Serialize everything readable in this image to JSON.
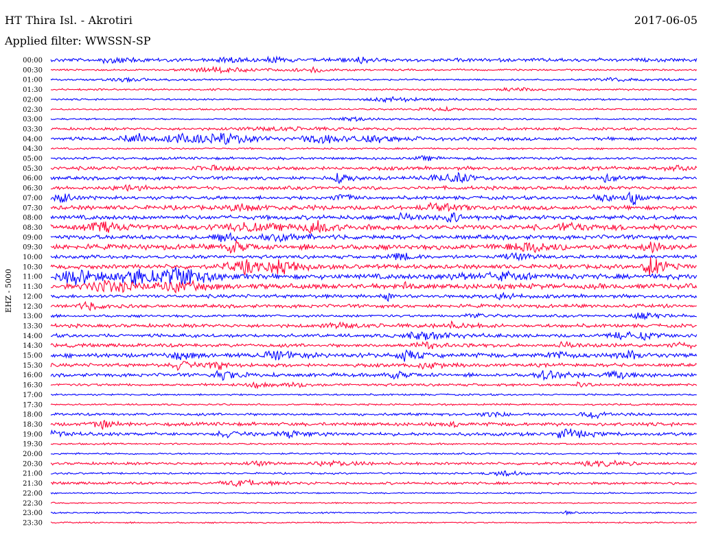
{
  "header": {
    "station": "HT Thira Isl. - Akrotiri",
    "date": "2017-06-05",
    "filter_label": "Applied filter:",
    "filter_value": "WWSSN-SP"
  },
  "chart_data": {
    "type": "line",
    "title": "HT Thira Isl. - Akrotiri",
    "subtitle": "Applied filter: WWSSN-SP",
    "ylabel": "EHZ - 5000",
    "trace_colors": [
      "#0000ff",
      "#ff0033"
    ],
    "rows": [
      {
        "label": "00:00",
        "color": "#0000ff",
        "amp": 2,
        "bursts": [
          [
            0.1,
            0.03,
            4
          ],
          [
            0.28,
            0.03,
            3
          ],
          [
            0.35,
            0.02,
            3
          ],
          [
            0.47,
            0.05,
            3
          ]
        ]
      },
      {
        "label": "00:30",
        "color": "#ff0033",
        "amp": 1,
        "bursts": [
          [
            0.26,
            0.08,
            3
          ],
          [
            0.4,
            0.03,
            3
          ]
        ]
      },
      {
        "label": "01:00",
        "color": "#0000ff",
        "amp": 1,
        "bursts": [
          [
            0.12,
            0.05,
            2
          ],
          [
            0.88,
            0.06,
            2
          ]
        ]
      },
      {
        "label": "01:30",
        "color": "#ff0033",
        "amp": 1,
        "bursts": [
          [
            0.72,
            0.04,
            2
          ]
        ]
      },
      {
        "label": "02:00",
        "color": "#0000ff",
        "amp": 1,
        "bursts": [
          [
            0.53,
            0.06,
            3
          ]
        ]
      },
      {
        "label": "02:30",
        "color": "#ff0033",
        "amp": 1,
        "bursts": [
          [
            0.6,
            0.05,
            2
          ]
        ]
      },
      {
        "label": "03:00",
        "color": "#0000ff",
        "amp": 1,
        "bursts": [
          [
            0.47,
            0.06,
            2
          ]
        ]
      },
      {
        "label": "03:30",
        "color": "#ff0033",
        "amp": 1.5,
        "bursts": [
          [
            0.35,
            0.08,
            2
          ]
        ]
      },
      {
        "label": "04:00",
        "color": "#0000ff",
        "amp": 2,
        "bursts": [
          [
            0.13,
            0.03,
            6
          ],
          [
            0.21,
            0.04,
            7
          ],
          [
            0.27,
            0.05,
            5
          ],
          [
            0.42,
            0.04,
            5
          ],
          [
            0.5,
            0.04,
            4
          ]
        ]
      },
      {
        "label": "04:30",
        "color": "#ff0033",
        "amp": 1,
        "bursts": []
      },
      {
        "label": "05:00",
        "color": "#0000ff",
        "amp": 1.5,
        "bursts": [
          [
            0.58,
            0.03,
            2
          ]
        ]
      },
      {
        "label": "05:30",
        "color": "#ff0033",
        "amp": 2,
        "bursts": [
          [
            0.25,
            0.05,
            2
          ],
          [
            0.97,
            0.03,
            3
          ]
        ]
      },
      {
        "label": "06:00",
        "color": "#0000ff",
        "amp": 2,
        "bursts": [
          [
            0.45,
            0.02,
            6
          ],
          [
            0.6,
            0.03,
            5
          ],
          [
            0.63,
            0.02,
            6
          ],
          [
            0.86,
            0.02,
            5
          ]
        ]
      },
      {
        "label": "06:30",
        "color": "#ff0033",
        "amp": 2,
        "bursts": [
          [
            0.12,
            0.04,
            3
          ]
        ]
      },
      {
        "label": "07:00",
        "color": "#0000ff",
        "amp": 2,
        "bursts": [
          [
            0.02,
            0.02,
            6
          ],
          [
            0.45,
            0.02,
            5
          ],
          [
            0.85,
            0.02,
            6
          ],
          [
            0.9,
            0.01,
            9
          ]
        ]
      },
      {
        "label": "07:30",
        "color": "#ff0033",
        "amp": 2.5,
        "bursts": [
          [
            0.3,
            0.04,
            4
          ],
          [
            0.6,
            0.04,
            4
          ]
        ]
      },
      {
        "label": "08:00",
        "color": "#0000ff",
        "amp": 2.5,
        "bursts": [
          [
            0.62,
            0.02,
            6
          ],
          [
            0.55,
            0.05,
            3
          ]
        ]
      },
      {
        "label": "08:30",
        "color": "#ff0033",
        "amp": 3,
        "bursts": [
          [
            0.08,
            0.04,
            5
          ],
          [
            0.3,
            0.05,
            5
          ],
          [
            0.41,
            0.03,
            6
          ],
          [
            0.8,
            0.04,
            4
          ]
        ]
      },
      {
        "label": "09:00",
        "color": "#0000ff",
        "amp": 2.5,
        "bursts": [
          [
            0.27,
            0.02,
            6
          ],
          [
            0.36,
            0.04,
            4
          ]
        ]
      },
      {
        "label": "09:30",
        "color": "#ff0033",
        "amp": 3,
        "bursts": [
          [
            0.28,
            0.02,
            8
          ],
          [
            0.74,
            0.05,
            6
          ],
          [
            0.93,
            0.02,
            8
          ]
        ]
      },
      {
        "label": "10:00",
        "color": "#0000ff",
        "amp": 2,
        "bursts": [
          [
            0.54,
            0.02,
            5
          ],
          [
            0.72,
            0.03,
            4
          ]
        ]
      },
      {
        "label": "10:30",
        "color": "#ff0033",
        "amp": 2.5,
        "bursts": [
          [
            0.3,
            0.05,
            8
          ],
          [
            0.36,
            0.03,
            7
          ],
          [
            0.93,
            0.02,
            16
          ]
        ]
      },
      {
        "label": "11:00",
        "color": "#0000ff",
        "amp": 3,
        "bursts": [
          [
            0.04,
            0.04,
            9
          ],
          [
            0.14,
            0.05,
            10
          ],
          [
            0.2,
            0.04,
            10
          ],
          [
            0.62,
            0.03,
            4
          ],
          [
            0.7,
            0.04,
            4
          ]
        ]
      },
      {
        "label": "11:30",
        "color": "#ff0033",
        "amp": 3,
        "bursts": [
          [
            0.09,
            0.05,
            7
          ],
          [
            0.2,
            0.04,
            6
          ],
          [
            0.55,
            0.01,
            5
          ]
        ]
      },
      {
        "label": "12:00",
        "color": "#0000ff",
        "amp": 2,
        "bursts": [
          [
            0.52,
            0.01,
            6
          ],
          [
            0.7,
            0.02,
            5
          ]
        ]
      },
      {
        "label": "12:30",
        "color": "#ff0033",
        "amp": 2,
        "bursts": [
          [
            0.06,
            0.03,
            4
          ]
        ]
      },
      {
        "label": "13:00",
        "color": "#0000ff",
        "amp": 1.5,
        "bursts": [
          [
            0.92,
            0.03,
            5
          ],
          [
            0.66,
            0.03,
            3
          ]
        ]
      },
      {
        "label": "13:30",
        "color": "#ff0033",
        "amp": 2,
        "bursts": [
          [
            0.45,
            0.04,
            3
          ],
          [
            0.62,
            0.04,
            3
          ]
        ]
      },
      {
        "label": "14:00",
        "color": "#0000ff",
        "amp": 2,
        "bursts": [
          [
            0.58,
            0.05,
            5
          ],
          [
            0.88,
            0.03,
            4
          ],
          [
            0.92,
            0.02,
            4
          ]
        ]
      },
      {
        "label": "14:30",
        "color": "#ff0033",
        "amp": 2,
        "bursts": [
          [
            0.58,
            0.03,
            4
          ],
          [
            0.8,
            0.03,
            3
          ],
          [
            0.97,
            0.02,
            4
          ]
        ]
      },
      {
        "label": "15:00",
        "color": "#0000ff",
        "amp": 2.5,
        "bursts": [
          [
            0.2,
            0.03,
            4
          ],
          [
            0.35,
            0.04,
            5
          ],
          [
            0.55,
            0.02,
            6
          ],
          [
            0.78,
            0.02,
            5
          ],
          [
            0.9,
            0.03,
            4
          ]
        ]
      },
      {
        "label": "15:30",
        "color": "#ff0033",
        "amp": 2,
        "bursts": [
          [
            0.2,
            0.02,
            6
          ],
          [
            0.26,
            0.02,
            5
          ],
          [
            0.58,
            0.03,
            4
          ]
        ]
      },
      {
        "label": "16:00",
        "color": "#0000ff",
        "amp": 2,
        "bursts": [
          [
            0.27,
            0.03,
            5
          ],
          [
            0.53,
            0.02,
            5
          ],
          [
            0.77,
            0.03,
            6
          ],
          [
            0.88,
            0.03,
            5
          ]
        ]
      },
      {
        "label": "16:30",
        "color": "#ff0033",
        "amp": 1.5,
        "bursts": [
          [
            0.32,
            0.02,
            3
          ],
          [
            0.38,
            0.02,
            3
          ],
          [
            0.82,
            0.02,
            3
          ]
        ]
      },
      {
        "label": "17:00",
        "color": "#0000ff",
        "amp": 1,
        "bursts": []
      },
      {
        "label": "17:30",
        "color": "#ff0033",
        "amp": 1,
        "bursts": []
      },
      {
        "label": "18:00",
        "color": "#0000ff",
        "amp": 1.5,
        "bursts": [
          [
            0.68,
            0.03,
            3
          ],
          [
            0.84,
            0.03,
            5
          ]
        ]
      },
      {
        "label": "18:30",
        "color": "#ff0033",
        "amp": 2,
        "bursts": [
          [
            0.08,
            0.02,
            6
          ],
          [
            0.62,
            0.01,
            5
          ]
        ]
      },
      {
        "label": "19:00",
        "color": "#0000ff",
        "amp": 2,
        "bursts": [
          [
            0.01,
            0.02,
            4
          ],
          [
            0.27,
            0.02,
            4
          ],
          [
            0.37,
            0.03,
            4
          ],
          [
            0.8,
            0.03,
            6
          ]
        ]
      },
      {
        "label": "19:30",
        "color": "#ff0033",
        "amp": 1,
        "bursts": []
      },
      {
        "label": "20:00",
        "color": "#0000ff",
        "amp": 1,
        "bursts": []
      },
      {
        "label": "20:30",
        "color": "#ff0033",
        "amp": 1.5,
        "bursts": [
          [
            0.32,
            0.02,
            3
          ],
          [
            0.44,
            0.05,
            3
          ],
          [
            0.85,
            0.05,
            3
          ]
        ]
      },
      {
        "label": "21:00",
        "color": "#0000ff",
        "amp": 1,
        "bursts": [
          [
            0.7,
            0.04,
            3
          ]
        ]
      },
      {
        "label": "21:30",
        "color": "#ff0033",
        "amp": 1.5,
        "bursts": [
          [
            0.3,
            0.06,
            3
          ]
        ]
      },
      {
        "label": "22:00",
        "color": "#0000ff",
        "amp": 0.8,
        "bursts": []
      },
      {
        "label": "22:30",
        "color": "#ff0033",
        "amp": 0.8,
        "bursts": []
      },
      {
        "label": "23:00",
        "color": "#0000ff",
        "amp": 0.8,
        "bursts": [
          [
            0.8,
            0.01,
            2
          ]
        ]
      },
      {
        "label": "23:30",
        "color": "#ff0033",
        "amp": 0.8,
        "bursts": []
      }
    ]
  }
}
